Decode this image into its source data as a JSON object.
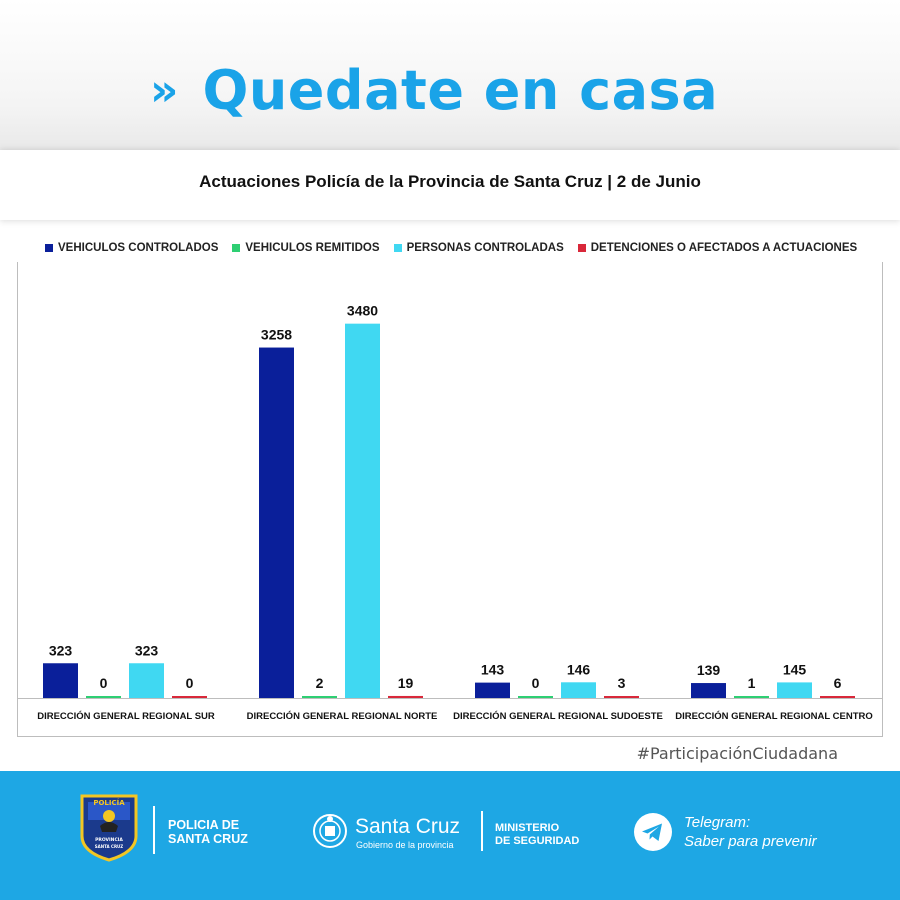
{
  "header": {
    "chevron": "»",
    "title": "Quedate en casa",
    "subtitle": "Actuaciones Policía de la Provincia de Santa Cruz | 2 de Junio"
  },
  "colors": {
    "accent": "#1aa3e8",
    "footer_bg": "#1ea7e4"
  },
  "chart_data": {
    "type": "bar",
    "categories": [
      "DIRECCIÓN GENERAL REGIONAL SUR",
      "DIRECCIÓN GENERAL REGIONAL NORTE",
      "DIRECCIÓN GENERAL REGIONAL SUDOESTE",
      "DIRECCIÓN GENERAL REGIONAL CENTRO"
    ],
    "series": [
      {
        "name": "VEHICULOS CONTROLADOS",
        "color": "#0a1f9a",
        "values": [
          323,
          3258,
          143,
          139
        ]
      },
      {
        "name": "VEHICULOS REMITIDOS",
        "color": "#2ecf73",
        "values": [
          0,
          2,
          0,
          1
        ]
      },
      {
        "name": "PERSONAS CONTROLADAS",
        "color": "#40d8f2",
        "values": [
          323,
          3480,
          146,
          145
        ]
      },
      {
        "name": "DETENCIONES O AFECTADOS A ACTUACIONES",
        "color": "#d9283a",
        "values": [
          0,
          19,
          3,
          6
        ]
      }
    ],
    "title": "",
    "xlabel": "",
    "ylabel": "",
    "ylim": [
      0,
      3700
    ],
    "grid": false,
    "legend": "top"
  },
  "hashtag": "#ParticipaciónCiudadana",
  "footer": {
    "police_line1": "POLICIA DE",
    "police_line2": "SANTA CRUZ",
    "shield_text_top": "POLICÍA",
    "shield_text_mid": "PROVINCIA",
    "shield_text_bot": "SANTA CRUZ",
    "santa_cruz_title": "Santa Cruz",
    "santa_cruz_sub": "Gobierno de la provincia",
    "ministry_line1": "MINISTERIO",
    "ministry_line2": "DE SEGURIDAD",
    "telegram_line1": "Telegram:",
    "telegram_line2": "Saber para prevenir",
    "shield_icon": "police-shield-icon",
    "gov_icon": "santa-cruz-coat-of-arms-icon",
    "telegram_icon": "telegram-icon"
  }
}
